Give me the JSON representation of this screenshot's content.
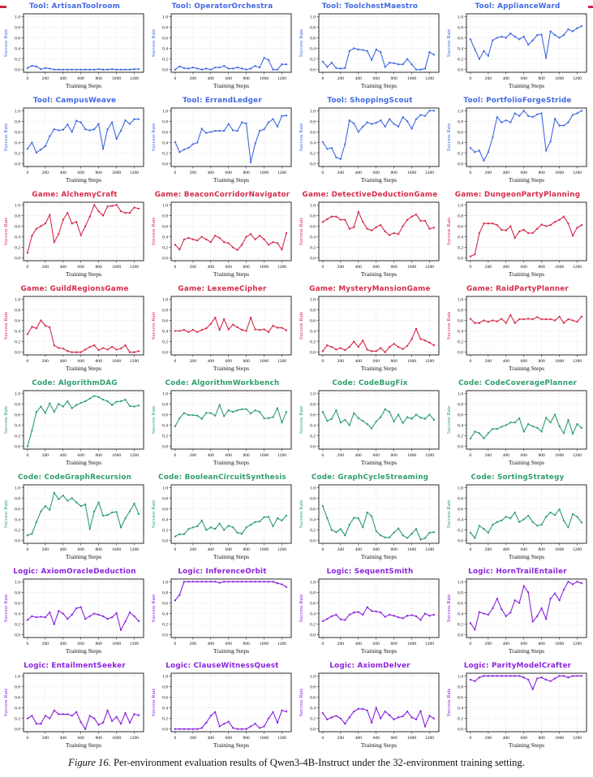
{
  "figure": {
    "caption_label": "Figure 16.",
    "caption_text": " Per-environment evaluation results of Qwen3-4B-Instruct under the 32-environment training setting."
  },
  "groups": {
    "Tool": "#4169e1",
    "Game": "#d62b4b",
    "Code": "#2e9e6e",
    "Logic": "#8b23dd"
  },
  "axis": {
    "xlabel": "Training Steps",
    "ylabel": "Success Rate",
    "xticks": [
      0,
      200,
      400,
      600,
      800,
      1000,
      1200
    ],
    "yticks": [
      "0.0",
      "0.2",
      "0.4",
      "0.6",
      "0.8",
      "1.0"
    ],
    "xlim": [
      -45,
      1305
    ],
    "ylim": [
      -0.05,
      1.05
    ],
    "x_start": 0,
    "x_step": 50,
    "grid": "dashed"
  },
  "chart_data": [
    {
      "type": "line",
      "title": "Tool: ArtisanToolroom",
      "group": "Tool",
      "y": [
        0.03,
        0.07,
        0.06,
        0.01,
        0.03,
        0.02,
        0.0,
        0.0,
        0.0,
        0.0,
        0.0,
        0.0,
        0.0,
        0.0,
        0.0,
        0.0,
        0.01,
        0.0,
        0.0,
        0.01,
        0.0,
        0.0,
        0.0,
        0.0,
        0.01,
        0.01
      ]
    },
    {
      "type": "line",
      "title": "Tool: OperatorOrchestra",
      "group": "Tool",
      "y": [
        0.0,
        0.06,
        0.03,
        0.02,
        0.04,
        0.02,
        0.0,
        0.02,
        0.0,
        0.04,
        0.04,
        0.07,
        0.02,
        0.02,
        0.04,
        0.02,
        0.0,
        0.02,
        0.07,
        0.04,
        0.22,
        0.18,
        0.0,
        0.0,
        0.1,
        0.1
      ]
    },
    {
      "type": "line",
      "title": "Tool: ToolchestMaestro",
      "group": "Tool",
      "y": [
        0.15,
        0.05,
        0.13,
        0.03,
        0.02,
        0.03,
        0.35,
        0.4,
        0.38,
        0.37,
        0.35,
        0.18,
        0.38,
        0.33,
        0.05,
        0.13,
        0.12,
        0.1,
        0.1,
        0.2,
        0.1,
        0.0,
        0.0,
        0.02,
        0.33,
        0.28
      ]
    },
    {
      "type": "line",
      "title": "Tool: ApplianceWard",
      "group": "Tool",
      "y": [
        0.57,
        0.38,
        0.2,
        0.35,
        0.26,
        0.55,
        0.6,
        0.62,
        0.6,
        0.68,
        0.62,
        0.57,
        0.62,
        0.47,
        0.55,
        0.65,
        0.66,
        0.22,
        0.72,
        0.65,
        0.6,
        0.65,
        0.76,
        0.72,
        0.78,
        0.82
      ]
    },
    {
      "type": "line",
      "title": "Tool: CampusWeave",
      "group": "Tool",
      "y": [
        0.28,
        0.4,
        0.21,
        0.27,
        0.33,
        0.52,
        0.65,
        0.63,
        0.64,
        0.74,
        0.6,
        0.81,
        0.78,
        0.65,
        0.63,
        0.65,
        0.75,
        0.28,
        0.65,
        0.78,
        0.47,
        0.62,
        0.82,
        0.75,
        0.84,
        0.84
      ]
    },
    {
      "type": "line",
      "title": "Tool: ErrandLedger",
      "group": "Tool",
      "y": [
        0.41,
        0.22,
        0.27,
        0.3,
        0.37,
        0.4,
        0.66,
        0.58,
        0.6,
        0.62,
        0.62,
        0.62,
        0.75,
        0.63,
        0.62,
        0.78,
        0.76,
        0.03,
        0.38,
        0.62,
        0.65,
        0.78,
        0.84,
        0.7,
        0.9,
        0.91
      ]
    },
    {
      "type": "line",
      "title": "Tool: ShoppingScout",
      "group": "Tool",
      "y": [
        0.41,
        0.28,
        0.3,
        0.12,
        0.09,
        0.37,
        0.82,
        0.76,
        0.6,
        0.7,
        0.78,
        0.75,
        0.77,
        0.82,
        0.7,
        0.84,
        0.75,
        0.7,
        0.88,
        0.8,
        0.66,
        0.84,
        0.92,
        0.9,
        1.0,
        1.0
      ]
    },
    {
      "type": "line",
      "title": "Tool: PortfolioForgeStride",
      "group": "Tool",
      "y": [
        0.3,
        0.22,
        0.25,
        0.06,
        0.22,
        0.5,
        0.88,
        0.78,
        0.82,
        0.78,
        0.95,
        0.9,
        1.0,
        0.9,
        0.88,
        0.93,
        0.95,
        0.25,
        0.42,
        0.85,
        0.72,
        0.72,
        0.78,
        0.92,
        0.95,
        1.0
      ]
    },
    {
      "type": "line",
      "title": "Game: AlchemyCraft",
      "group": "Game",
      "y": [
        0.1,
        0.42,
        0.55,
        0.6,
        0.65,
        0.81,
        0.3,
        0.45,
        0.72,
        0.85,
        0.65,
        0.68,
        0.43,
        0.6,
        0.78,
        1.0,
        0.88,
        0.8,
        0.97,
        0.98,
        1.0,
        0.88,
        0.85,
        0.85,
        0.95,
        0.93
      ]
    },
    {
      "type": "line",
      "title": "Game: BeaconCorridorNavigator",
      "group": "Game",
      "y": [
        0.25,
        0.16,
        0.35,
        0.38,
        0.35,
        0.33,
        0.4,
        0.35,
        0.3,
        0.42,
        0.38,
        0.3,
        0.28,
        0.2,
        0.15,
        0.25,
        0.4,
        0.45,
        0.35,
        0.42,
        0.35,
        0.25,
        0.3,
        0.28,
        0.16,
        0.47
      ]
    },
    {
      "type": "line",
      "title": "Game: DetectiveDeductionGame",
      "group": "Game",
      "y": [
        0.68,
        0.73,
        0.78,
        0.78,
        0.72,
        0.72,
        0.55,
        0.58,
        0.87,
        0.68,
        0.55,
        0.52,
        0.58,
        0.62,
        0.5,
        0.43,
        0.47,
        0.45,
        0.6,
        0.72,
        0.78,
        0.82,
        0.7,
        0.7,
        0.55,
        0.57
      ]
    },
    {
      "type": "line",
      "title": "Game: DungeonPartyPlanning",
      "group": "Game",
      "y": [
        0.03,
        0.07,
        0.47,
        0.65,
        0.65,
        0.65,
        0.62,
        0.53,
        0.52,
        0.6,
        0.38,
        0.5,
        0.53,
        0.47,
        0.47,
        0.55,
        0.63,
        0.6,
        0.62,
        0.68,
        0.72,
        0.78,
        0.65,
        0.42,
        0.57,
        0.62
      ]
    },
    {
      "type": "line",
      "title": "Game: GuildRegionsGame",
      "group": "Game",
      "y": [
        0.34,
        0.48,
        0.45,
        0.6,
        0.5,
        0.47,
        0.13,
        0.08,
        0.07,
        0.02,
        0.0,
        0.0,
        0.0,
        0.05,
        0.1,
        0.13,
        0.04,
        0.08,
        0.05,
        0.1,
        0.05,
        0.07,
        0.13,
        0.0,
        0.0,
        0.02
      ]
    },
    {
      "type": "line",
      "title": "Game: LexemeCipher",
      "group": "Game",
      "y": [
        0.4,
        0.4,
        0.42,
        0.38,
        0.42,
        0.38,
        0.42,
        0.45,
        0.53,
        0.65,
        0.42,
        0.62,
        0.43,
        0.52,
        0.47,
        0.42,
        0.4,
        0.65,
        0.43,
        0.42,
        0.43,
        0.38,
        0.5,
        0.46,
        0.46,
        0.41
      ]
    },
    {
      "type": "line",
      "title": "Game: MysteryMansionGame",
      "group": "Game",
      "y": [
        0.02,
        0.13,
        0.1,
        0.05,
        0.08,
        0.04,
        0.1,
        0.2,
        0.1,
        0.22,
        0.05,
        0.02,
        0.02,
        0.08,
        0.0,
        0.1,
        0.16,
        0.1,
        0.06,
        0.12,
        0.25,
        0.44,
        0.25,
        0.22,
        0.18,
        0.13
      ]
    },
    {
      "type": "line",
      "title": "Game: RaidPartyPlanner",
      "group": "Game",
      "y": [
        0.63,
        0.55,
        0.55,
        0.6,
        0.57,
        0.6,
        0.58,
        0.63,
        0.55,
        0.7,
        0.55,
        0.62,
        0.62,
        0.63,
        0.62,
        0.66,
        0.62,
        0.62,
        0.62,
        0.6,
        0.67,
        0.55,
        0.62,
        0.6,
        0.57,
        0.67
      ]
    },
    {
      "type": "line",
      "title": "Code: AlgorithmDAG",
      "group": "Code",
      "y": [
        0.0,
        0.3,
        0.65,
        0.75,
        0.63,
        0.81,
        0.65,
        0.8,
        0.75,
        0.85,
        0.72,
        0.78,
        0.82,
        0.85,
        0.9,
        0.95,
        0.93,
        0.88,
        0.85,
        0.78,
        0.84,
        0.85,
        0.88,
        0.76,
        0.75,
        0.77
      ]
    },
    {
      "type": "line",
      "title": "Code: AlgorithmWorkbench",
      "group": "Code",
      "y": [
        0.38,
        0.53,
        0.63,
        0.59,
        0.59,
        0.58,
        0.52,
        0.63,
        0.63,
        0.58,
        0.78,
        0.57,
        0.68,
        0.65,
        0.68,
        0.7,
        0.7,
        0.62,
        0.68,
        0.65,
        0.53,
        0.53,
        0.55,
        0.72,
        0.45,
        0.65
      ]
    },
    {
      "type": "line",
      "title": "Code: CodeBugFix",
      "group": "Code",
      "y": [
        0.65,
        0.48,
        0.52,
        0.68,
        0.45,
        0.5,
        0.4,
        0.63,
        0.53,
        0.48,
        0.42,
        0.34,
        0.47,
        0.55,
        0.7,
        0.65,
        0.47,
        0.6,
        0.44,
        0.55,
        0.52,
        0.6,
        0.54,
        0.52,
        0.6,
        0.5
      ]
    },
    {
      "type": "line",
      "title": "Code: CodeCoveragePlanner",
      "group": "Code",
      "y": [
        0.15,
        0.28,
        0.25,
        0.15,
        0.25,
        0.33,
        0.33,
        0.37,
        0.4,
        0.45,
        0.45,
        0.53,
        0.28,
        0.42,
        0.38,
        0.35,
        0.28,
        0.54,
        0.45,
        0.6,
        0.38,
        0.25,
        0.5,
        0.24,
        0.42,
        0.35
      ]
    },
    {
      "type": "line",
      "title": "Code: CodeGraphRecursion",
      "group": "Code",
      "y": [
        0.1,
        0.13,
        0.35,
        0.55,
        0.65,
        0.58,
        0.9,
        0.78,
        0.85,
        0.75,
        0.8,
        0.72,
        0.65,
        0.68,
        0.22,
        0.55,
        0.72,
        0.47,
        0.48,
        0.53,
        0.54,
        0.25,
        0.42,
        0.55,
        0.7,
        0.5
      ]
    },
    {
      "type": "line",
      "title": "Code: BooleanCircuitSynthesis",
      "group": "Code",
      "y": [
        0.08,
        0.12,
        0.12,
        0.22,
        0.25,
        0.27,
        0.38,
        0.2,
        0.25,
        0.22,
        0.32,
        0.2,
        0.28,
        0.25,
        0.15,
        0.13,
        0.25,
        0.3,
        0.35,
        0.36,
        0.44,
        0.45,
        0.27,
        0.42,
        0.38,
        0.47
      ]
    },
    {
      "type": "line",
      "title": "Code: GraphCycleStreaming",
      "group": "Code",
      "y": [
        0.65,
        0.42,
        0.2,
        0.16,
        0.22,
        0.1,
        0.3,
        0.43,
        0.42,
        0.25,
        0.53,
        0.46,
        0.18,
        0.1,
        0.06,
        0.06,
        0.15,
        0.23,
        0.1,
        0.05,
        0.13,
        0.22,
        0.02,
        0.05,
        0.15,
        0.16
      ]
    },
    {
      "type": "line",
      "title": "Code: SortingStrategy",
      "group": "Code",
      "y": [
        0.15,
        0.05,
        0.28,
        0.22,
        0.15,
        0.3,
        0.35,
        0.38,
        0.45,
        0.42,
        0.53,
        0.35,
        0.4,
        0.47,
        0.35,
        0.28,
        0.3,
        0.45,
        0.53,
        0.48,
        0.59,
        0.38,
        0.25,
        0.5,
        0.45,
        0.34
      ]
    },
    {
      "type": "line",
      "title": "Logic: AxiomOracleDeduction",
      "group": "Logic",
      "y": [
        0.28,
        0.35,
        0.33,
        0.34,
        0.33,
        0.42,
        0.2,
        0.45,
        0.4,
        0.3,
        0.38,
        0.5,
        0.52,
        0.3,
        0.35,
        0.4,
        0.38,
        0.35,
        0.3,
        0.33,
        0.41,
        0.09,
        0.25,
        0.42,
        0.35,
        0.26
      ]
    },
    {
      "type": "line",
      "title": "Logic: InferenceOrbit",
      "group": "Logic",
      "y": [
        0.65,
        0.75,
        1.0,
        1.0,
        1.0,
        1.0,
        1.0,
        1.0,
        1.0,
        1.0,
        0.98,
        1.0,
        1.0,
        1.0,
        1.0,
        1.0,
        1.0,
        1.0,
        1.0,
        1.0,
        1.0,
        1.0,
        1.0,
        0.97,
        0.95,
        0.9
      ]
    },
    {
      "type": "line",
      "title": "Logic: SequentSmith",
      "group": "Logic",
      "y": [
        0.26,
        0.3,
        0.35,
        0.38,
        0.29,
        0.28,
        0.38,
        0.42,
        0.43,
        0.38,
        0.52,
        0.45,
        0.44,
        0.42,
        0.34,
        0.38,
        0.36,
        0.33,
        0.31,
        0.36,
        0.37,
        0.35,
        0.28,
        0.4,
        0.36,
        0.38
      ]
    },
    {
      "type": "line",
      "title": "Logic: HornTrailEntailer",
      "group": "Logic",
      "y": [
        0.22,
        0.1,
        0.43,
        0.4,
        0.38,
        0.5,
        0.68,
        0.48,
        0.35,
        0.42,
        0.65,
        0.6,
        0.92,
        0.8,
        0.25,
        0.35,
        0.5,
        0.3,
        0.68,
        0.78,
        0.65,
        0.85,
        1.0,
        0.95,
        1.0,
        0.97
      ]
    },
    {
      "type": "line",
      "title": "Logic: EntailmentSeeker",
      "group": "Logic",
      "y": [
        0.2,
        0.25,
        0.1,
        0.1,
        0.25,
        0.2,
        0.35,
        0.28,
        0.28,
        0.28,
        0.25,
        0.32,
        0.13,
        0.0,
        0.25,
        0.2,
        0.08,
        0.12,
        0.35,
        0.15,
        0.23,
        0.1,
        0.3,
        0.12,
        0.28,
        0.26
      ]
    },
    {
      "type": "line",
      "title": "Logic: ClauseWitnessQuest",
      "group": "Logic",
      "y": [
        0.0,
        0.0,
        0.0,
        0.0,
        0.0,
        0.0,
        0.02,
        0.12,
        0.25,
        0.32,
        0.05,
        0.1,
        0.14,
        0.02,
        0.0,
        0.0,
        0.0,
        0.05,
        0.1,
        0.02,
        0.05,
        0.2,
        0.32,
        0.12,
        0.35,
        0.33
      ]
    },
    {
      "type": "line",
      "title": "Logic: AxiomDelver",
      "group": "Logic",
      "y": [
        0.3,
        0.18,
        0.22,
        0.25,
        0.2,
        0.1,
        0.22,
        0.33,
        0.38,
        0.38,
        0.35,
        0.12,
        0.4,
        0.2,
        0.33,
        0.26,
        0.18,
        0.22,
        0.24,
        0.33,
        0.22,
        0.18,
        0.34,
        0.05,
        0.25,
        0.2
      ]
    },
    {
      "type": "line",
      "title": "Logic: ParityModelCrafter",
      "group": "Logic",
      "y": [
        0.93,
        0.9,
        0.97,
        1.0,
        1.0,
        1.0,
        1.0,
        1.0,
        1.0,
        1.0,
        1.0,
        1.0,
        0.97,
        0.93,
        0.75,
        0.95,
        0.97,
        0.93,
        0.9,
        0.95,
        1.0,
        1.0,
        0.97,
        1.0,
        1.0,
        1.0
      ]
    }
  ]
}
